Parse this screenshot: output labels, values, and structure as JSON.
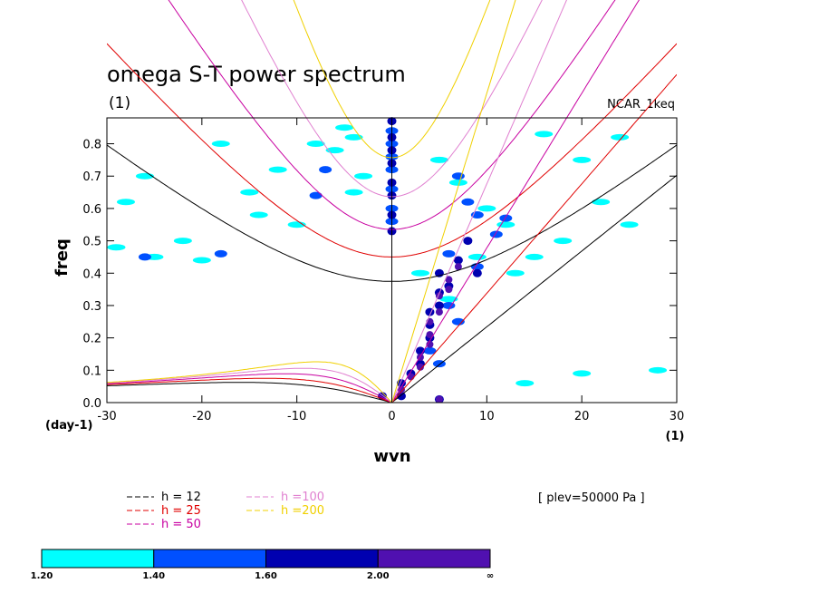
{
  "chart_data": {
    "type": "contour",
    "title": "omega S-T power spectrum",
    "subtitle": "(1)",
    "case_label": "NCAR_1keq",
    "xlabel": "wvn",
    "ylabel": "freq",
    "x_unit_label": "(1)",
    "y_unit_label": "(day-1)",
    "xlim": [
      -30,
      30
    ],
    "ylim": [
      0,
      0.88
    ],
    "x_ticks": [
      -30,
      -20,
      -10,
      0,
      10,
      20,
      30
    ],
    "x_tick_labels": [
      "-30",
      "-20",
      "-10",
      "0",
      "10",
      "20",
      "30"
    ],
    "y_ticks": [
      0.0,
      0.1,
      0.2,
      0.3,
      0.4,
      0.5,
      0.6,
      0.7,
      0.8
    ],
    "y_tick_labels": [
      "0.0",
      "0.1",
      "0.2",
      "0.3",
      "0.4",
      "0.5",
      "0.6",
      "0.7",
      "0.8"
    ],
    "annotation": "[ plev=50000 Pa ]",
    "dispersion_curves": [
      {
        "label": "h = 12",
        "h": 12,
        "color": "#000000"
      },
      {
        "label": "h = 25",
        "h": 25,
        "color": "#e00000"
      },
      {
        "label": "h = 50",
        "h": 50,
        "color": "#c800a0"
      },
      {
        "label": "h =100",
        "h": 100,
        "color": "#e080d0"
      },
      {
        "label": "h =200",
        "h": 200,
        "color": "#f0d000"
      }
    ],
    "colorbar": {
      "levels": [
        "1.20",
        "1.40",
        "1.60",
        "2.00",
        "∞"
      ],
      "colors": [
        "#00ffff",
        "#0050ff",
        "#0000b0",
        "#5010b0"
      ]
    },
    "power_regions": [
      {
        "level": 0,
        "points": [
          [
            -5,
            0.85
          ],
          [
            -4,
            0.82
          ],
          [
            -6,
            0.78
          ],
          [
            -3,
            0.7
          ],
          [
            -4,
            0.65
          ],
          [
            5,
            0.75
          ],
          [
            7,
            0.68
          ],
          [
            10,
            0.6
          ],
          [
            12,
            0.55
          ],
          [
            15,
            0.45
          ],
          [
            18,
            0.5
          ],
          [
            22,
            0.62
          ],
          [
            25,
            0.55
          ],
          [
            -25,
            0.45
          ],
          [
            -22,
            0.5
          ],
          [
            -20,
            0.44
          ],
          [
            -28,
            0.62
          ],
          [
            -26,
            0.7
          ],
          [
            -15,
            0.65
          ],
          [
            -12,
            0.72
          ],
          [
            -8,
            0.8
          ],
          [
            -18,
            0.8
          ],
          [
            3,
            0.4
          ],
          [
            6,
            0.32
          ],
          [
            9,
            0.45
          ],
          [
            13,
            0.4
          ],
          [
            16,
            0.83
          ],
          [
            20,
            0.75
          ],
          [
            24,
            0.82
          ],
          [
            -10,
            0.55
          ],
          [
            -14,
            0.58
          ],
          [
            -29,
            0.48
          ],
          [
            28,
            0.1
          ],
          [
            20,
            0.09
          ],
          [
            14,
            0.06
          ]
        ]
      },
      {
        "level": 1,
        "points": [
          [
            0,
            0.84
          ],
          [
            0,
            0.8
          ],
          [
            0,
            0.76
          ],
          [
            0,
            0.72
          ],
          [
            0,
            0.66
          ],
          [
            0,
            0.6
          ],
          [
            0,
            0.56
          ],
          [
            7,
            0.7
          ],
          [
            8,
            0.62
          ],
          [
            9,
            0.58
          ],
          [
            11,
            0.52
          ],
          [
            12,
            0.57
          ],
          [
            6,
            0.46
          ],
          [
            9,
            0.42
          ],
          [
            5,
            0.12
          ],
          [
            4,
            0.16
          ],
          [
            7,
            0.25
          ],
          [
            6,
            0.3
          ],
          [
            -8,
            0.64
          ],
          [
            -7,
            0.72
          ],
          [
            -26,
            0.45
          ],
          [
            -18,
            0.46
          ]
        ]
      },
      {
        "level": 2,
        "points": [
          [
            0,
            0.87
          ],
          [
            0,
            0.82
          ],
          [
            0,
            0.78
          ],
          [
            0,
            0.74
          ],
          [
            0,
            0.68
          ],
          [
            0,
            0.64
          ],
          [
            0,
            0.58
          ],
          [
            0,
            0.53
          ],
          [
            5,
            0.4
          ],
          [
            6,
            0.36
          ],
          [
            5,
            0.34
          ],
          [
            5,
            0.3
          ],
          [
            4,
            0.28
          ],
          [
            4,
            0.24
          ],
          [
            4,
            0.2
          ],
          [
            3,
            0.16
          ],
          [
            3,
            0.12
          ],
          [
            2,
            0.09
          ],
          [
            1,
            0.06
          ],
          [
            5,
            0.01
          ],
          [
            1,
            0.02
          ],
          [
            -1,
            0.02
          ],
          [
            7,
            0.44
          ],
          [
            8,
            0.5
          ],
          [
            9,
            0.4
          ]
        ]
      },
      {
        "level": 3,
        "points": [
          [
            6,
            0.38
          ],
          [
            5,
            0.33
          ],
          [
            5,
            0.28
          ],
          [
            4,
            0.25
          ],
          [
            4,
            0.21
          ],
          [
            4,
            0.18
          ],
          [
            3,
            0.14
          ],
          [
            3,
            0.11
          ],
          [
            1,
            0.04
          ],
          [
            5,
            0.01
          ],
          [
            2,
            0.08
          ],
          [
            7,
            0.42
          ],
          [
            6,
            0.35
          ]
        ]
      }
    ]
  }
}
